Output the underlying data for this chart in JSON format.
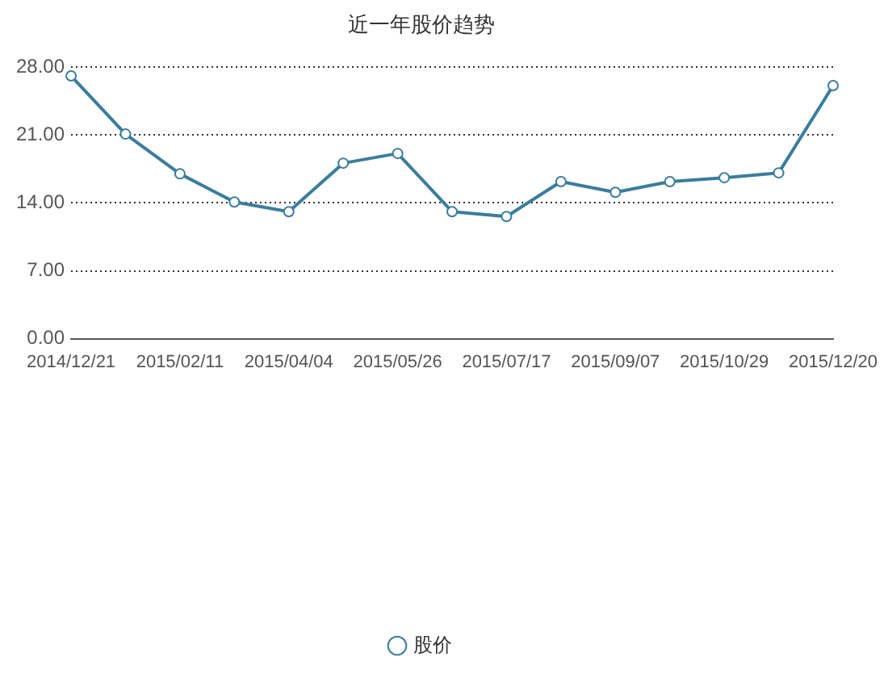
{
  "chart_data": {
    "type": "line",
    "title": "近一年股价趋势",
    "categories": [
      "2014/12/21",
      null,
      "2015/02/11",
      null,
      "2015/04/04",
      null,
      "2015/05/26",
      null,
      "2015/07/17",
      null,
      "2015/09/07",
      null,
      "2015/10/29",
      null,
      "2015/12/20"
    ],
    "series": [
      {
        "name": "股价",
        "color": "#3a7d9c",
        "values": [
          27.1,
          21.1,
          17.0,
          14.1,
          13.1,
          18.1,
          19.1,
          13.1,
          12.6,
          16.2,
          15.1,
          16.2,
          16.6,
          17.1,
          26.1
        ]
      }
    ],
    "ylim": [
      0,
      28
    ],
    "yticks": [
      {
        "value": 0,
        "label": "0.00"
      },
      {
        "value": 7,
        "label": "7.00"
      },
      {
        "value": 14,
        "label": "14.00"
      },
      {
        "value": 21,
        "label": "21.00"
      },
      {
        "value": 28,
        "label": "28.00"
      }
    ],
    "grid": "y",
    "legend": "bottom",
    "marker": "circle",
    "line_style": "solid"
  }
}
